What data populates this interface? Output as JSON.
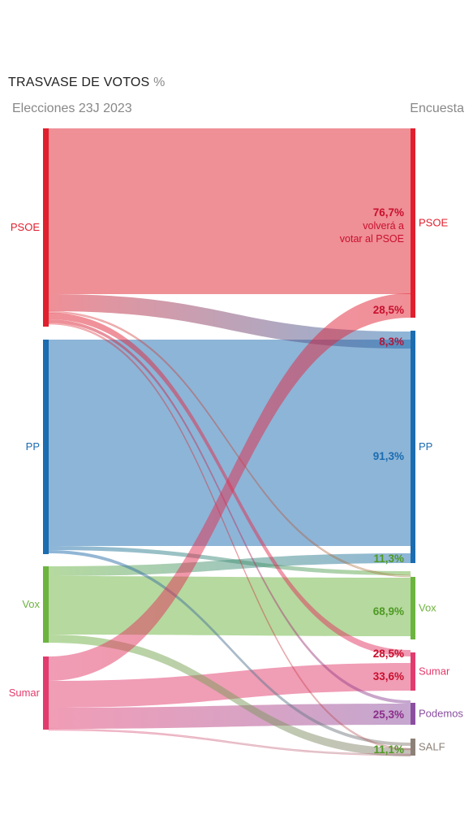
{
  "title": "TRASVASE DE VOTOS",
  "title_unit": "%",
  "left_header": "Elecciones 23J 2023",
  "right_header": "Encuesta",
  "colors": {
    "PSOE": "#e0202e",
    "PP": "#1c6cb0",
    "Vox": "#6cb43f",
    "Sumar": "#e23b6d",
    "Podemos": "#8b4fa0",
    "SALF": "#8c8177"
  },
  "chart_data": {
    "type": "sankey",
    "unit": "%",
    "sources": [
      "PSOE",
      "PP",
      "Vox",
      "Sumar"
    ],
    "targets": [
      "PSOE",
      "PP",
      "Vox",
      "Sumar",
      "Podemos",
      "SALF"
    ],
    "links": [
      {
        "from": "PSOE",
        "to": "PSOE",
        "value": 76.7,
        "label": "76,7%"
      },
      {
        "from": "PSOE",
        "to": "PP",
        "value": 8.3,
        "label": "8,3%"
      },
      {
        "from": "PSOE",
        "to": "Vox",
        "value": 0.5
      },
      {
        "from": "PSOE",
        "to": "Sumar",
        "value": 3.5
      },
      {
        "from": "PSOE",
        "to": "Podemos",
        "value": 1.3
      },
      {
        "from": "PSOE",
        "to": "SALF",
        "value": 0.7
      },
      {
        "from": "PP",
        "to": "PP",
        "value": 91.3,
        "label": "91,3%"
      },
      {
        "from": "PP",
        "to": "Vox",
        "value": 3.2
      },
      {
        "from": "PP",
        "to": "SALF",
        "value": 1.8
      },
      {
        "from": "Vox",
        "to": "PP",
        "value": 11.3,
        "label": "11,3%"
      },
      {
        "from": "Vox",
        "to": "Vox",
        "value": 68.9,
        "label": "68,9%"
      },
      {
        "from": "Vox",
        "to": "SALF",
        "value": 11.1,
        "label": "11,1%"
      },
      {
        "from": "Sumar",
        "to": "PSOE",
        "value": 28.5,
        "label": "28,5%"
      },
      {
        "from": "Sumar",
        "to": "Sumar",
        "value": 33.6,
        "label": "33,6%"
      },
      {
        "from": "Sumar",
        "to": "Podemos",
        "value": 25.3,
        "label": "25,3%"
      },
      {
        "from": "Sumar",
        "to": "SALF",
        "value": 0.6
      }
    ],
    "annotations": [
      {
        "target": "PSOE",
        "lines": [
          "volverá a",
          "votar al PSOE"
        ]
      },
      {
        "target": "Sumar",
        "text": "28,5%"
      }
    ]
  }
}
